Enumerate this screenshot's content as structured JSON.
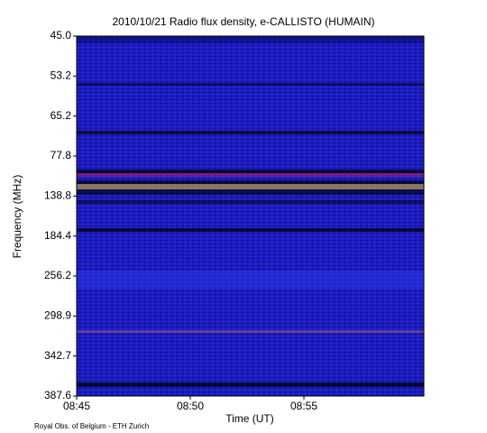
{
  "chart_data": {
    "type": "spectrogram",
    "title": "2010/10/21  Radio flux density, e-CALLISTO (HUMAIN)",
    "x_label": "Time (UT)",
    "y_label": "Frequency (MHz)",
    "footer": "Royal Obs. of Belgium - ETH Zurich",
    "xticks": [
      "08:45",
      "08:50",
      "08:55"
    ],
    "yticks": [
      {
        "value": 45,
        "label": "45.0"
      },
      {
        "value": 53.2,
        "label": "53.2"
      },
      {
        "value": 65.2,
        "label": "65.2"
      },
      {
        "value": 77.8,
        "label": "77.8"
      },
      {
        "value": 138.8,
        "label": "138.8"
      },
      {
        "value": 184.4,
        "label": "184.4"
      },
      {
        "value": 256.2,
        "label": "256.2"
      },
      {
        "value": 298.9,
        "label": "298.9"
      },
      {
        "value": 342.7,
        "label": "342.7"
      },
      {
        "value": 387.6,
        "label": "387.6"
      }
    ],
    "y_scale": "channel"
  }
}
